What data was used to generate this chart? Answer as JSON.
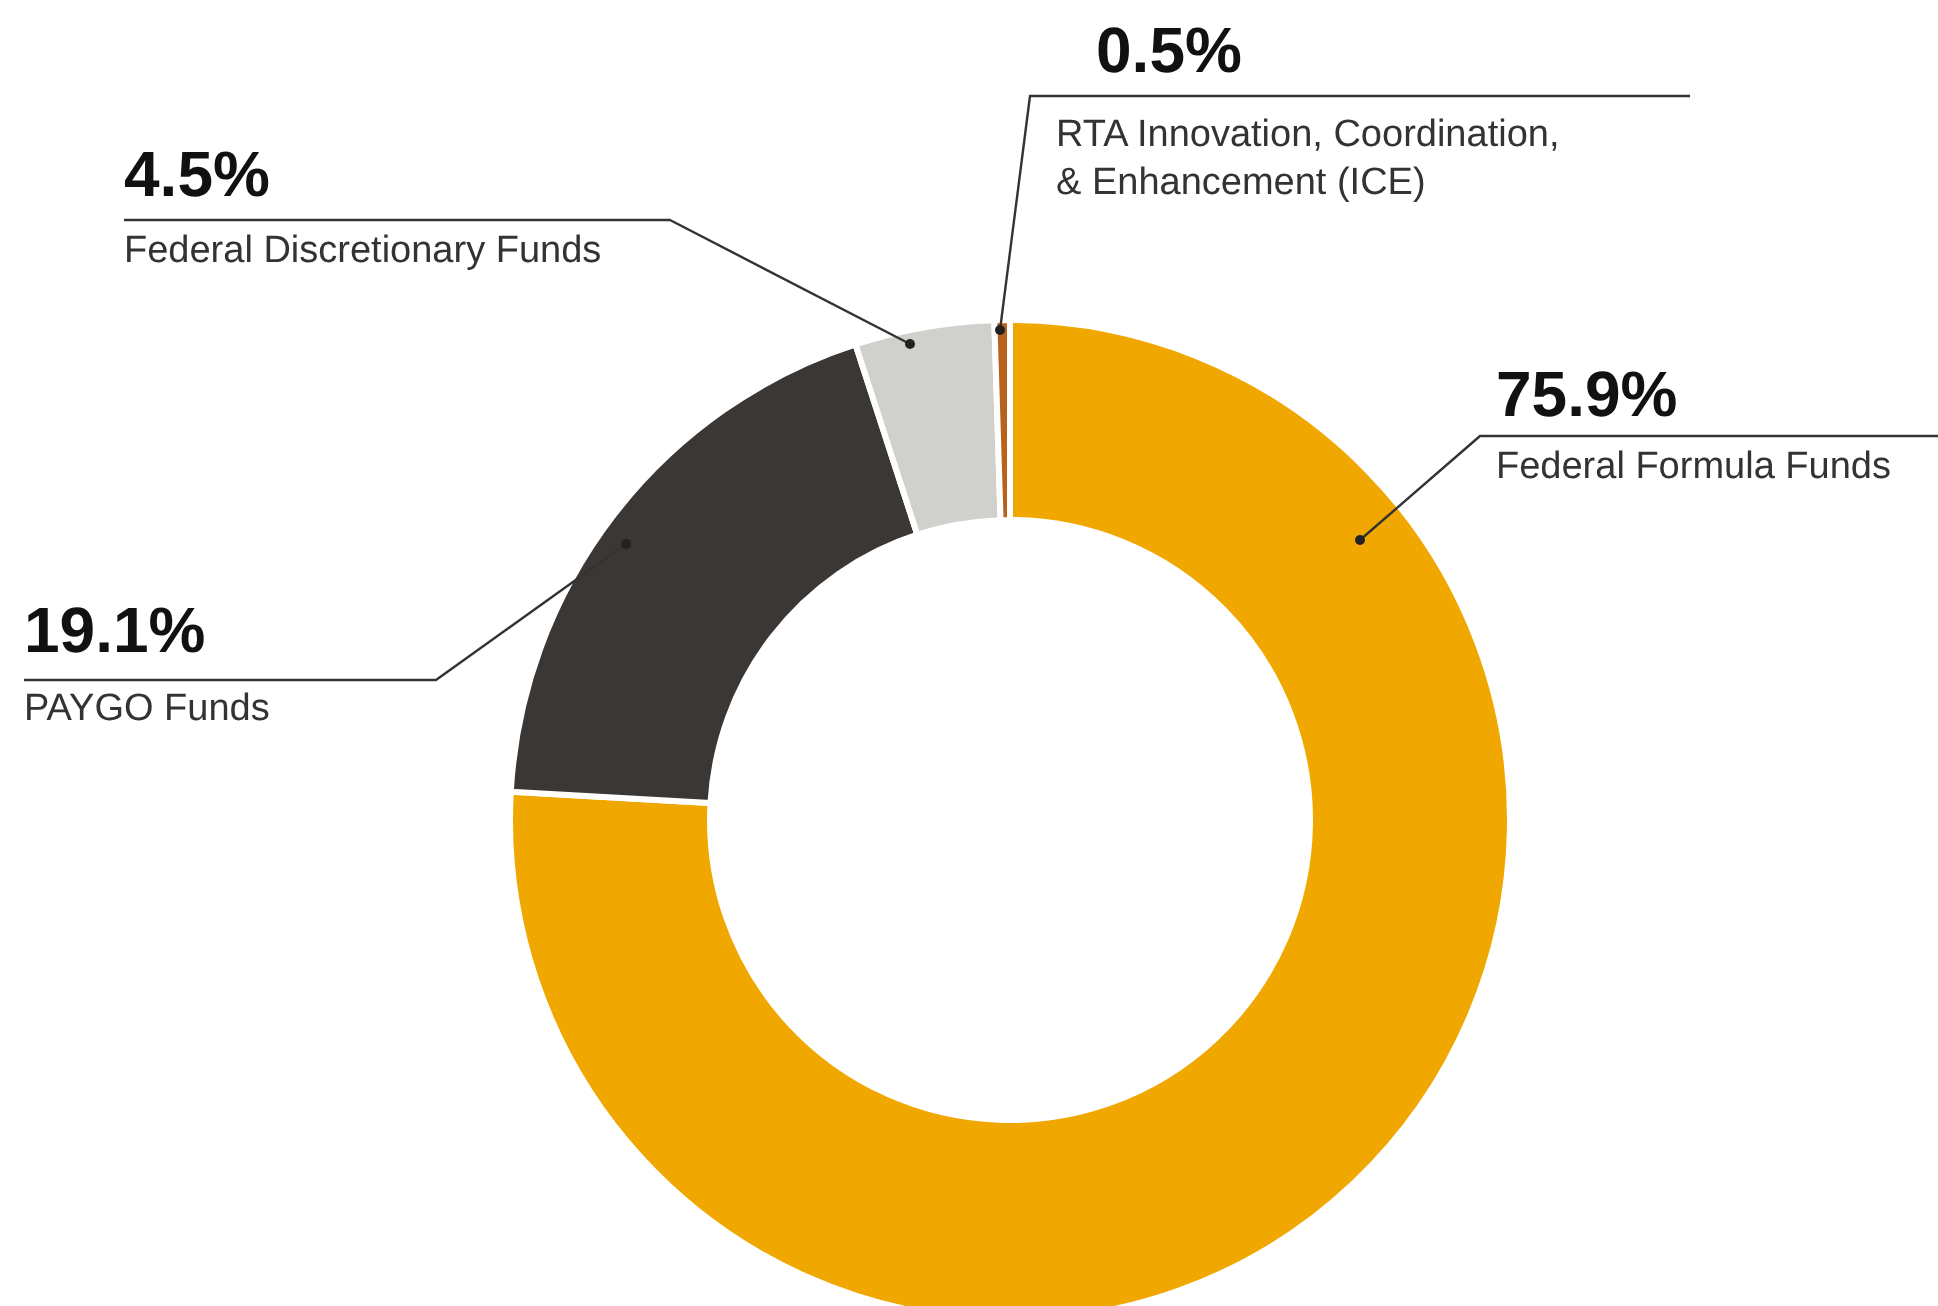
{
  "chart_data": {
    "type": "donut",
    "categories": [
      "Federal Formula Funds",
      "PAYGO Funds",
      "Federal Discretionary Funds",
      "RTA Innovation, Coordination, & Enhancement (ICE)"
    ],
    "values": [
      75.9,
      19.1,
      4.5,
      0.5
    ],
    "colors": [
      "#f0a800",
      "#3b3735",
      "#d0d0cc",
      "#b8621b"
    ],
    "value_labels": [
      "75.9%",
      "19.1%",
      "4.5%",
      "0.5%"
    ]
  }
}
